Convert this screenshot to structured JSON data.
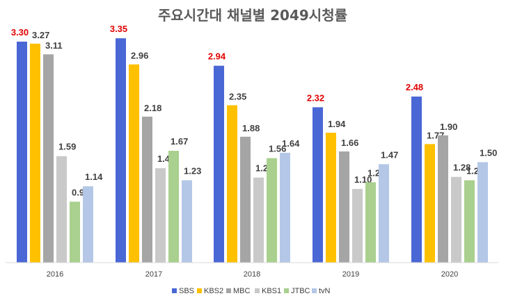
{
  "chart_data": {
    "type": "bar",
    "title": "주요시간대 채널별 2049시청률",
    "categories": [
      "2016",
      "2017",
      "2018",
      "2019",
      "2020"
    ],
    "series": [
      {
        "name": "SBS",
        "color": "#4a67d6",
        "values": [
          3.3,
          3.35,
          2.94,
          2.32,
          2.48
        ]
      },
      {
        "name": "KBS2",
        "color": "#ffc000",
        "values": [
          3.27,
          2.96,
          2.35,
          1.94,
          1.77
        ]
      },
      {
        "name": "MBC",
        "color": "#a5a5a5",
        "values": [
          3.11,
          2.18,
          1.88,
          1.66,
          1.9
        ]
      },
      {
        "name": "KBS1",
        "color": "#c9c9c9",
        "values": [
          1.59,
          1.41,
          1.27,
          1.1,
          1.28
        ]
      },
      {
        "name": "JTBC",
        "color": "#a9d08e",
        "values": [
          0.91,
          1.67,
          1.56,
          1.2,
          1.23
        ]
      },
      {
        "name": "tvN",
        "color": "#b4c7e7",
        "values": [
          1.14,
          1.23,
          1.64,
          1.47,
          1.5
        ]
      }
    ],
    "value_labels": {
      "SBS": [
        "3.30",
        "3.35",
        "2.94",
        "2.32",
        "2.48"
      ],
      "KBS2": [
        "3.27",
        "2.96",
        "2.35",
        "1.94",
        "1.77"
      ],
      "MBC": [
        "3.11",
        "2.18",
        "1.88",
        "1.66",
        "1.90"
      ],
      "KBS1": [
        "1.59",
        "1.41",
        "1.27",
        "1.10",
        "1.28"
      ],
      "JTBC": [
        "0.91",
        "1.67",
        "1.56",
        "1.20",
        "1.23"
      ],
      "tvN": [
        "1.14",
        "1.23",
        "1.64",
        "1.47",
        "1.50"
      ]
    },
    "highlight_series": "SBS",
    "highlight_color": "#e00000",
    "ylim": [
      0,
      3.6
    ],
    "grid": false,
    "legend_position": "bottom"
  }
}
